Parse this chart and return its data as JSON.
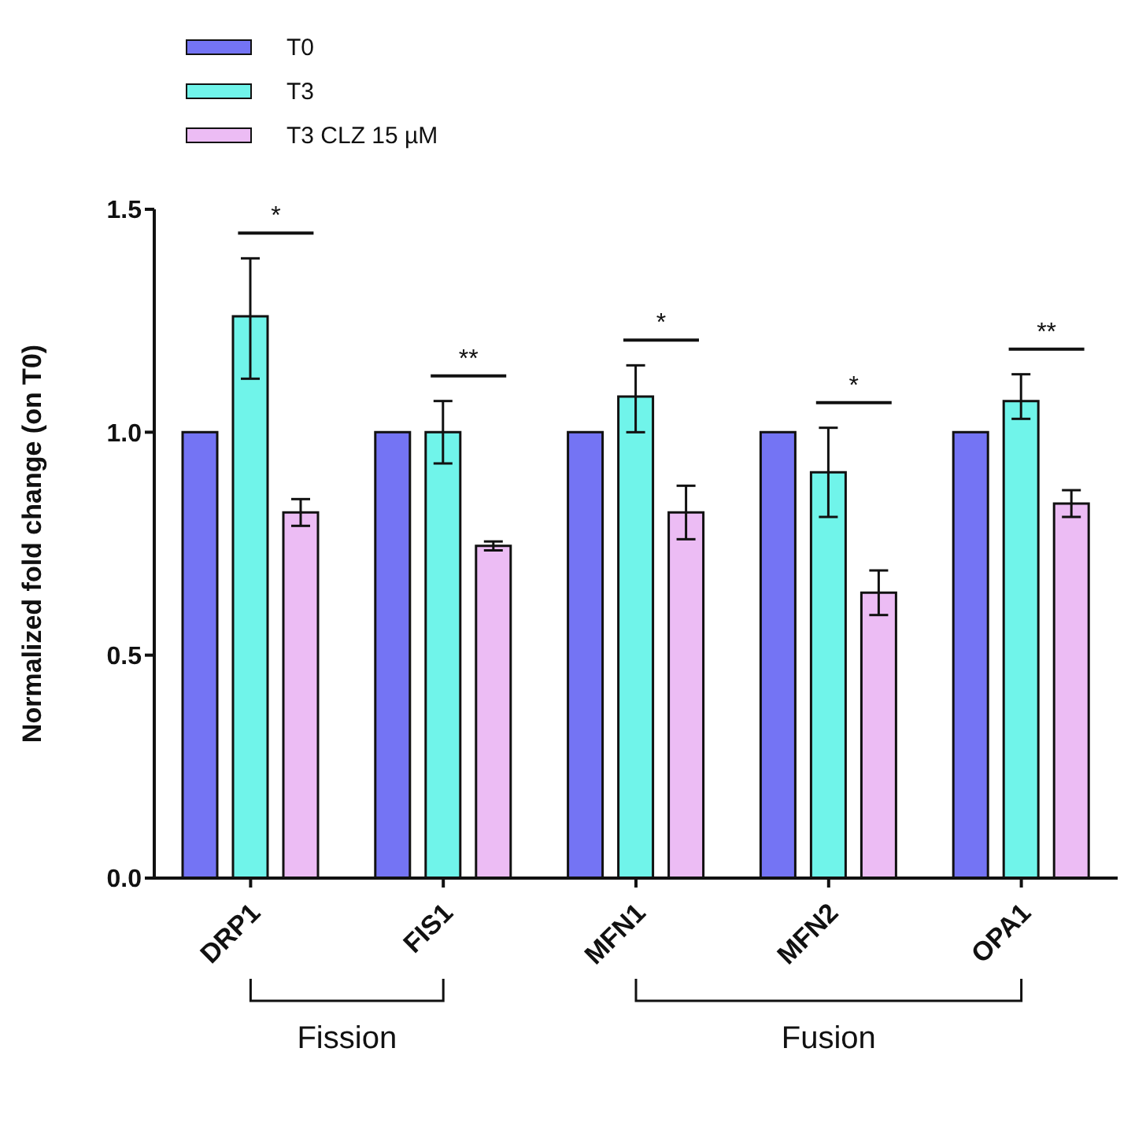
{
  "chart_data": {
    "type": "bar",
    "ylabel": "Normalized fold change (on T0)",
    "categories": [
      "DRP1",
      "FIS1",
      "MFN1",
      "MFN2",
      "OPA1"
    ],
    "series": [
      {
        "name": "T0",
        "color": "#7474f4",
        "values": [
          1,
          1,
          1,
          1,
          1
        ]
      },
      {
        "name": "T3",
        "color": "#70f4ea",
        "values": [
          1.26,
          1.0,
          1.08,
          0.91,
          1.07
        ],
        "errors": [
          [
            1.12,
            1.39
          ],
          [
            0.93,
            1.07
          ],
          [
            1.0,
            1.15
          ],
          [
            0.81,
            1.01
          ],
          [
            1.03,
            1.13
          ]
        ]
      },
      {
        "name": "T3 CLZ 15 µM",
        "color": "#ecbcf4",
        "values": [
          0.82,
          0.745,
          0.82,
          0.64,
          0.84
        ],
        "errors": [
          [
            0.79,
            0.85
          ],
          [
            0.735,
            0.755
          ],
          [
            0.76,
            0.88
          ],
          [
            0.59,
            0.69
          ],
          [
            0.81,
            0.87
          ]
        ]
      }
    ],
    "ylim": [
      0,
      1.5
    ],
    "yticks": [
      {
        "value": 0,
        "label": "0.0"
      },
      {
        "value": 0.5,
        "label": "0.5"
      },
      {
        "value": 1,
        "label": "1.0"
      },
      {
        "value": 1.5,
        "label": "1.5"
      }
    ],
    "legend": "top left",
    "grid": false,
    "annotations": [
      "*",
      "**",
      "*",
      "*",
      "**",
      "Fission",
      "Fusion"
    ]
  }
}
